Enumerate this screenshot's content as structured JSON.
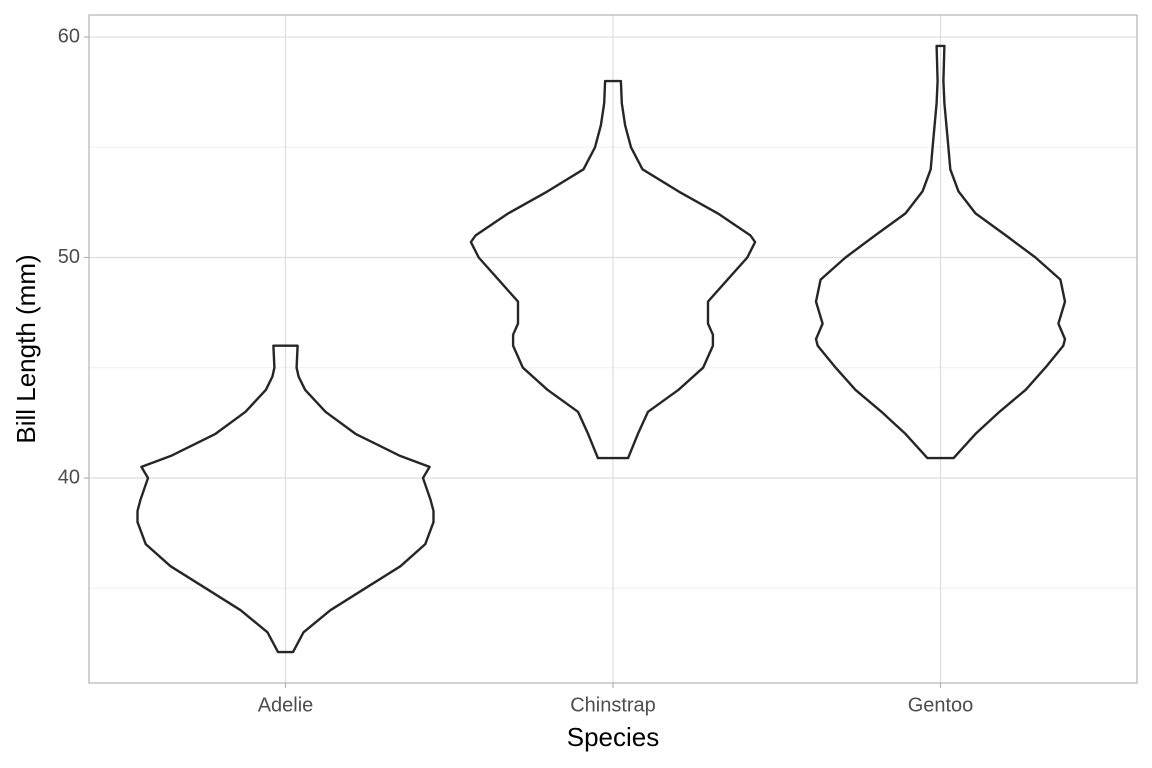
{
  "chart_data": {
    "type": "violin",
    "x_label": "Species",
    "y_label": "Bill Length (mm)",
    "categories": [
      "Adelie",
      "Chinstrap",
      "Gentoo"
    ],
    "ylim": [
      30.7,
      61
    ],
    "yticks": [
      40,
      50,
      60
    ],
    "y_minor_grid": [
      35,
      45,
      55
    ],
    "grid": true,
    "color": "#262626",
    "violins": [
      {
        "y": [
          32.1,
          33,
          34,
          35,
          36,
          37,
          38,
          38.5,
          39,
          40,
          40.5,
          41,
          42,
          43,
          44,
          44.6,
          45,
          46
        ],
        "half_width": [
          0.023,
          0.055,
          0.137,
          0.244,
          0.351,
          0.427,
          0.452,
          0.452,
          0.443,
          0.42,
          0.44,
          0.35,
          0.214,
          0.122,
          0.06,
          0.04,
          0.034,
          0.037
        ]
      },
      {
        "y": [
          40.9,
          42,
          43,
          44,
          45,
          46,
          46.5,
          47,
          48,
          49,
          50,
          50.7,
          51,
          52,
          53,
          54,
          55,
          56,
          57,
          58
        ],
        "half_width": [
          0.046,
          0.076,
          0.107,
          0.2,
          0.275,
          0.305,
          0.305,
          0.29,
          0.29,
          0.35,
          0.41,
          0.434,
          0.42,
          0.32,
          0.2,
          0.09,
          0.055,
          0.037,
          0.027,
          0.024
        ]
      },
      {
        "y": [
          40.9,
          42,
          43,
          44,
          45,
          46,
          46.3,
          47,
          48,
          49,
          50,
          51,
          52,
          53,
          54,
          55,
          56,
          57,
          58,
          59.6
        ],
        "half_width": [
          0.04,
          0.107,
          0.18,
          0.26,
          0.32,
          0.375,
          0.38,
          0.36,
          0.38,
          0.366,
          0.29,
          0.2,
          0.107,
          0.055,
          0.03,
          0.024,
          0.018,
          0.012,
          0.009,
          0.012
        ]
      }
    ]
  }
}
